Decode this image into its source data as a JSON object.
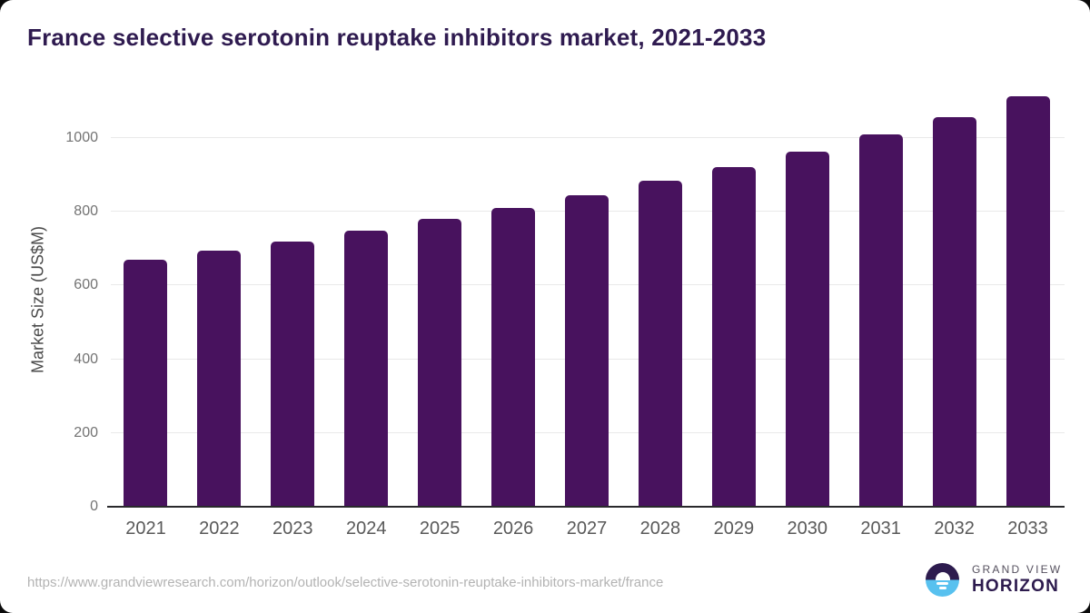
{
  "title": "France selective serotonin reuptake inhibitors market, 2021-2033",
  "chart_data": {
    "type": "bar",
    "title": "France selective serotonin reuptake inhibitors market, 2021-2033",
    "categories": [
      "2021",
      "2022",
      "2023",
      "2024",
      "2025",
      "2026",
      "2027",
      "2028",
      "2029",
      "2030",
      "2031",
      "2032",
      "2033"
    ],
    "values": [
      670,
      695,
      720,
      748,
      780,
      810,
      845,
      883,
      920,
      963,
      1010,
      1057,
      1113
    ],
    "xlabel": "",
    "ylabel": "Market Size (US$M)",
    "ylim": [
      0,
      1140
    ],
    "yticks": [
      0,
      200,
      400,
      600,
      800,
      1000
    ],
    "grid": true,
    "legend_position": "none",
    "bar_color": "#48125e"
  },
  "colors": {
    "title_text": "#2f1b50",
    "bar": "#48125e",
    "gridline": "#e9e9e9",
    "axis_line": "#29292c",
    "y_tick_text": "#737373",
    "x_tick_text": "#595959",
    "url_text": "#b3b3b3",
    "logo_purple": "#2d1b4e",
    "logo_blue": "#58c1ef"
  },
  "footer": {
    "source_url": "https://www.grandviewresearch.com/horizon/outlook/selective-serotonin-reuptake-inhibitors-market/france",
    "brand": {
      "line1": "GRAND VIEW",
      "line2": "HORIZON"
    }
  }
}
